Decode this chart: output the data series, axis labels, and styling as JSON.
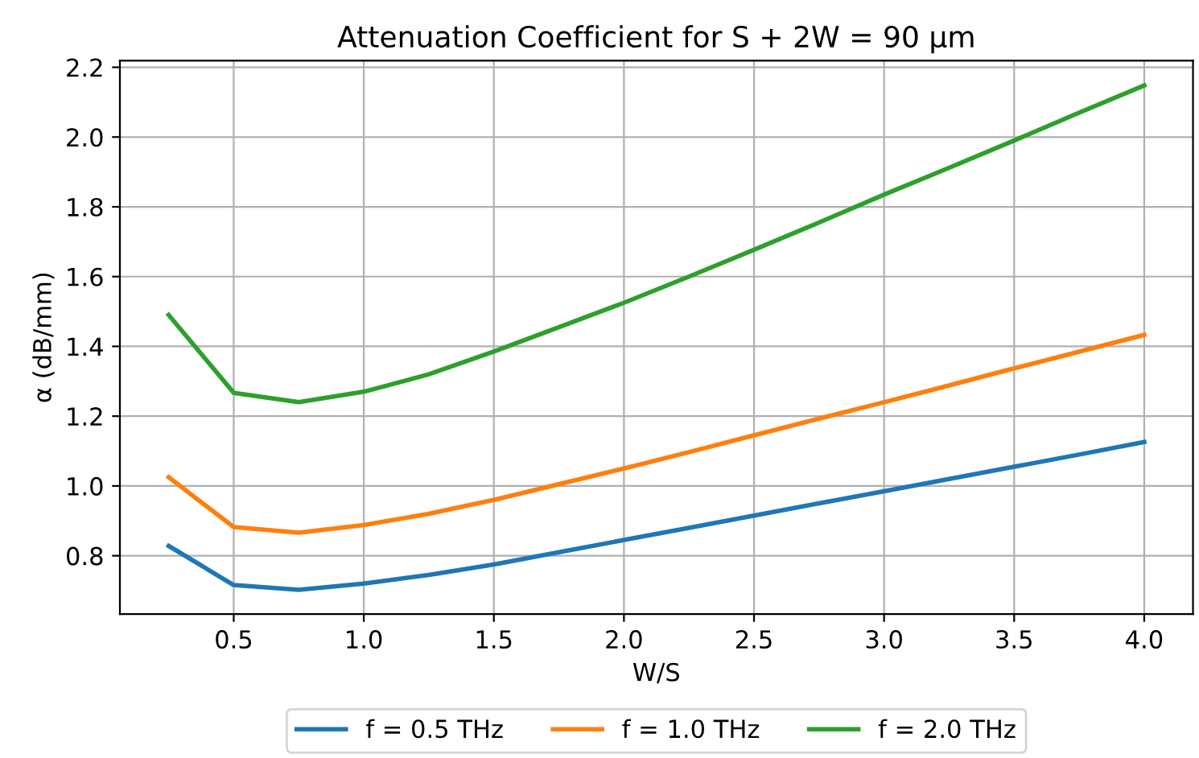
{
  "chart_data": {
    "type": "line",
    "title": "Attenuation Coefficient for S + 2W = 90 μm",
    "xlabel": "W/S",
    "ylabel": "α (dB/mm)",
    "x": [
      0.25,
      0.5,
      0.75,
      1.0,
      1.25,
      1.5,
      1.75,
      2.0,
      2.25,
      2.5,
      2.75,
      3.0,
      3.25,
      3.5,
      3.75,
      4.0
    ],
    "series": [
      {
        "name": "f = 0.5 THz",
        "color": "#1f77b4",
        "values": [
          0.828,
          0.716,
          0.702,
          0.72,
          0.745,
          0.775,
          0.81,
          0.845,
          0.88,
          0.915,
          0.95,
          0.985,
          1.02,
          1.055,
          1.09,
          1.126
        ]
      },
      {
        "name": "f = 1.0 THz",
        "color": "#ff7f0e",
        "values": [
          1.025,
          0.882,
          0.866,
          0.888,
          0.92,
          0.96,
          1.005,
          1.05,
          1.097,
          1.145,
          1.193,
          1.24,
          1.288,
          1.337,
          1.385,
          1.433
        ]
      },
      {
        "name": "f = 2.0 THz",
        "color": "#2ca02c",
        "values": [
          1.49,
          1.267,
          1.24,
          1.27,
          1.32,
          1.385,
          1.455,
          1.525,
          1.6,
          1.677,
          1.755,
          1.835,
          1.912,
          1.99,
          2.07,
          2.148
        ]
      }
    ],
    "xlim": [
      0.0625,
      4.1875
    ],
    "xticks": [
      0.5,
      {
        "value": 1,
        "label": "1.0"
      },
      1.5,
      {
        "value": 2,
        "label": "2.0"
      },
      2.5,
      {
        "value": 3,
        "label": "3.0"
      },
      3.5,
      {
        "value": 4,
        "label": "4.0"
      }
    ],
    "ylim": [
      0.633,
      2.219
    ],
    "yticks": [
      0.8,
      {
        "value": 1,
        "label": "1.0"
      },
      1.2,
      1.4,
      1.6,
      1.8,
      {
        "value": 2,
        "label": "2.0"
      },
      2.2
    ],
    "grid": true,
    "legend": "bottom",
    "marker": "none",
    "line_style": "solid"
  }
}
